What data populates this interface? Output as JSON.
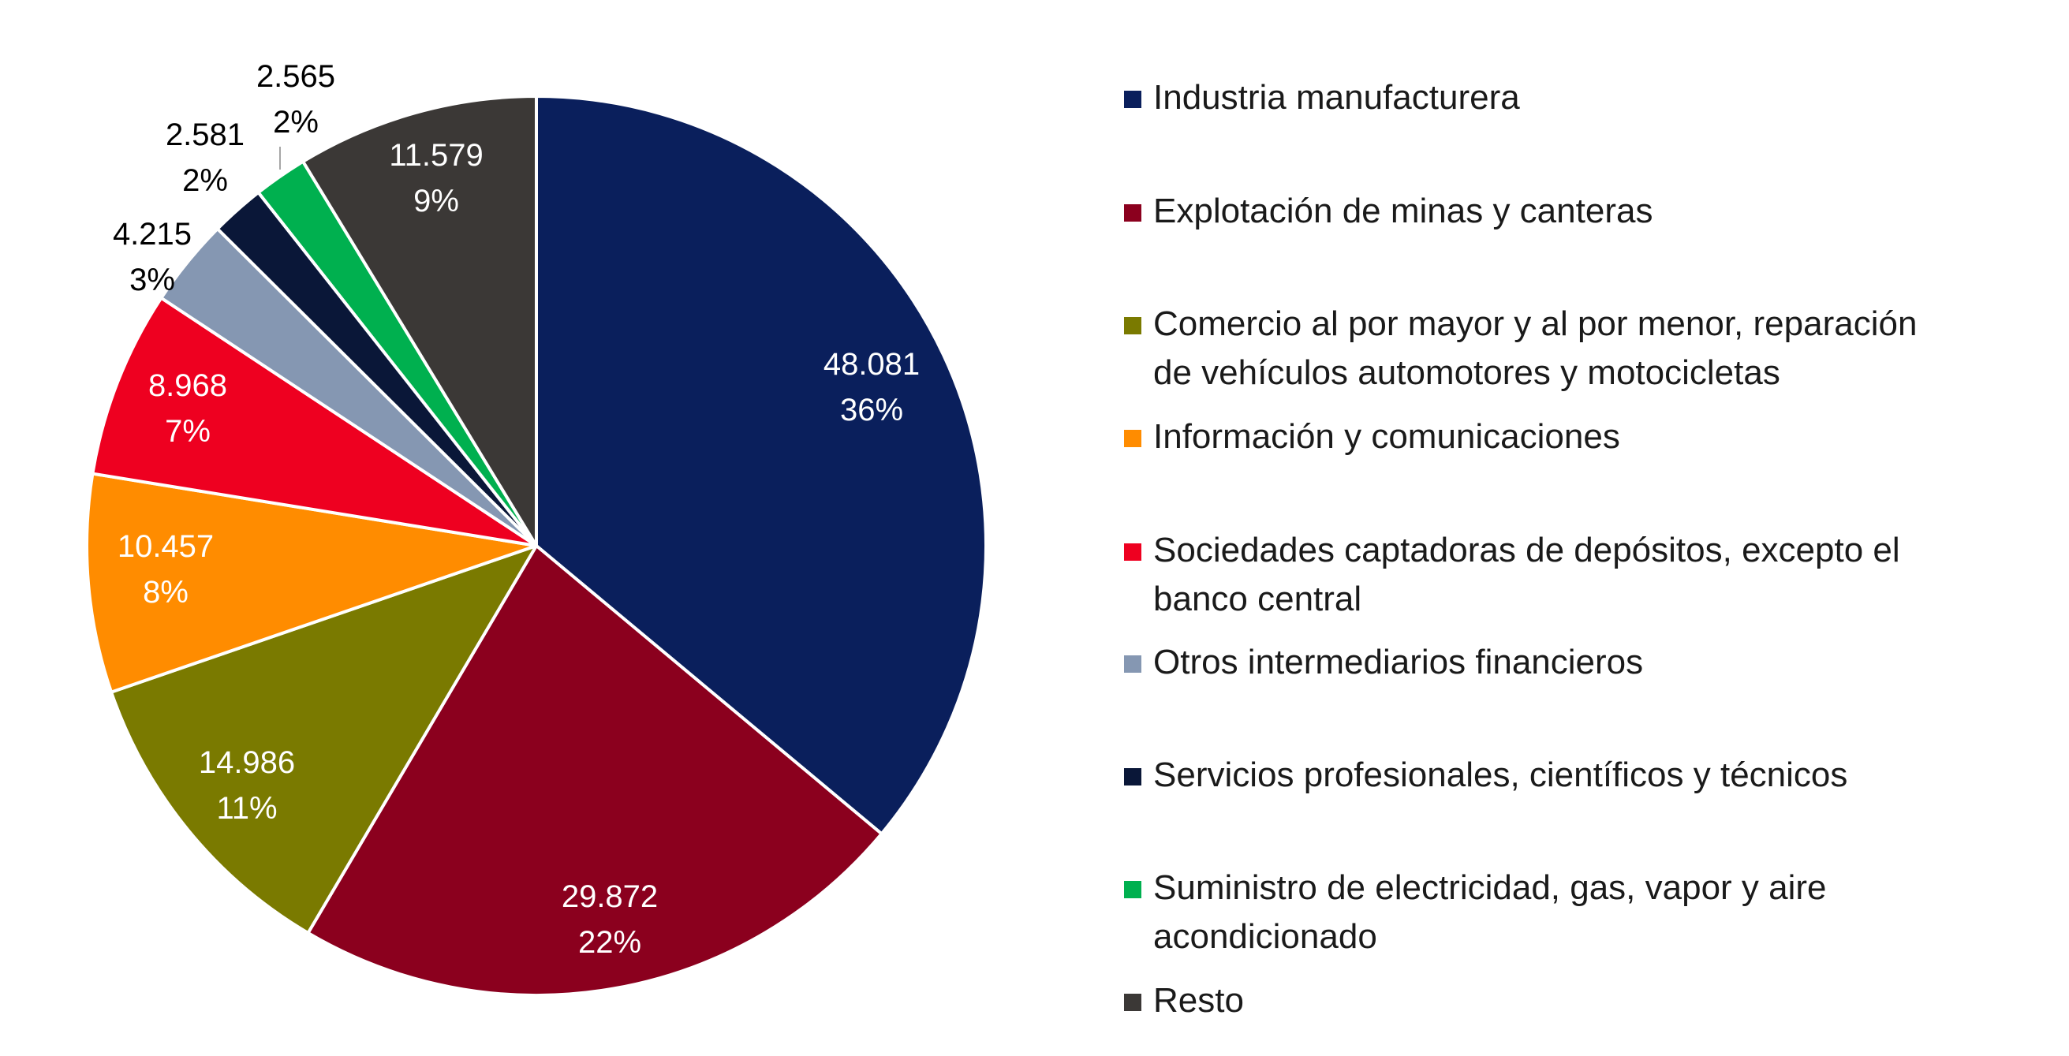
{
  "chart_data": {
    "type": "pie",
    "title": "",
    "legend_position": "right",
    "slices": [
      {
        "category": "Industria manufacturera",
        "value": "48.081",
        "value_num": 48081,
        "percent": "36%",
        "color": "#0a1f5c"
      },
      {
        "category": "Explotación de minas y canteras",
        "value": "29.872",
        "value_num": 29872,
        "percent": "22%",
        "color": "#8b001e"
      },
      {
        "category": "Comercio al por mayor y al por menor, reparación de vehículos automotores y motocicletas",
        "value": "14.986",
        "value_num": 14986,
        "percent": "11%",
        "color": "#7a7a00"
      },
      {
        "category": "Información y comunicaciones",
        "value": "10.457",
        "value_num": 10457,
        "percent": "8%",
        "color": "#ff8c00"
      },
      {
        "category": "Sociedades captadoras de depósitos, excepto el banco central",
        "value": "8.968",
        "value_num": 8968,
        "percent": "7%",
        "color": "#ee0020"
      },
      {
        "category": "Otros intermediarios financieros",
        "value": "4.215",
        "value_num": 4215,
        "percent": "3%",
        "color": "#8597b2"
      },
      {
        "category": "Servicios profesionales, científicos y técnicos",
        "value": "2.581",
        "value_num": 2581,
        "percent": "2%",
        "color": "#0a1738"
      },
      {
        "category": "Suministro de electricidad, gas, vapor y aire acondicionado",
        "value": "2.565",
        "value_num": 2565,
        "percent": "2%",
        "color": "#00b04f"
      },
      {
        "category": "Resto",
        "value": "11.579",
        "value_num": 11579,
        "percent": "9%",
        "color": "#3b3836"
      }
    ]
  }
}
